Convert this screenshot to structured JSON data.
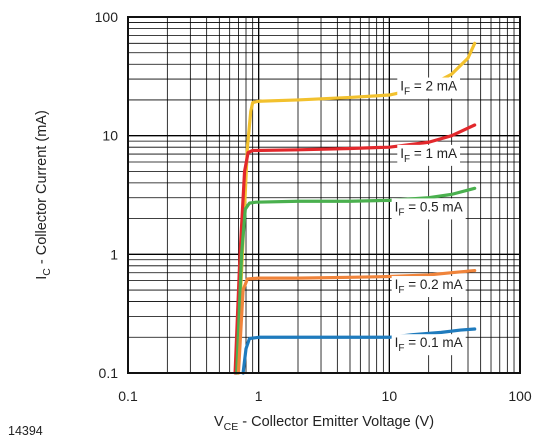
{
  "chart_data": {
    "type": "line",
    "figure_id": "14394",
    "xlabel": {
      "main": "V",
      "sub": "CE",
      "rest": " - Collector Emitter Voltage (V)"
    },
    "ylabel": {
      "main": "I",
      "sub": "C",
      "rest": " - Collector Current (mA)"
    },
    "x_scale": "log",
    "y_scale": "log",
    "xlim": [
      0.1,
      100
    ],
    "ylim": [
      0.1,
      100
    ],
    "x_ticks": [
      "0.1",
      "1",
      "10",
      "100"
    ],
    "y_ticks": [
      "0.1",
      "1",
      "10",
      "100"
    ],
    "grid": true,
    "series": [
      {
        "name": "IF = 2 mA",
        "label": {
          "main": "I",
          "sub": "F",
          "rest": " = 2 mA"
        },
        "label_anchor": [
          20,
          24
        ],
        "color": "#f2c12e",
        "points": [
          [
            0.68,
            0.1
          ],
          [
            0.75,
            1
          ],
          [
            0.82,
            8
          ],
          [
            0.87,
            16
          ],
          [
            0.9,
            19
          ],
          [
            1,
            19.5
          ],
          [
            2,
            20
          ],
          [
            5,
            21
          ],
          [
            10,
            22
          ],
          [
            20,
            26
          ],
          [
            30,
            33
          ],
          [
            40,
            45
          ],
          [
            45,
            60
          ]
        ]
      },
      {
        "name": "IF = 1 mA",
        "label": {
          "main": "I",
          "sub": "F",
          "rest": " = 1 mA"
        },
        "label_anchor": [
          20,
          6.5
        ],
        "color": "#e2282c",
        "points": [
          [
            0.66,
            0.1
          ],
          [
            0.72,
            1
          ],
          [
            0.78,
            5
          ],
          [
            0.83,
            7.2
          ],
          [
            0.9,
            7.5
          ],
          [
            2,
            7.6
          ],
          [
            5,
            7.8
          ],
          [
            10,
            8.0
          ],
          [
            20,
            8.8
          ],
          [
            30,
            10
          ],
          [
            45,
            12.3
          ]
        ]
      },
      {
        "name": "IF = 0.5 mA",
        "label": {
          "main": "I",
          "sub": "F",
          "rest": " = 0.5 mA"
        },
        "label_anchor": [
          20,
          2.3
        ],
        "color": "#4ab04e",
        "points": [
          [
            0.68,
            0.1
          ],
          [
            0.74,
            1
          ],
          [
            0.79,
            2.4
          ],
          [
            0.85,
            2.7
          ],
          [
            0.95,
            2.75
          ],
          [
            2,
            2.8
          ],
          [
            5,
            2.8
          ],
          [
            10,
            2.85
          ],
          [
            20,
            3.0
          ],
          [
            30,
            3.2
          ],
          [
            45,
            3.6
          ]
        ]
      },
      {
        "name": "IF = 0.2 mA",
        "label": {
          "main": "I",
          "sub": "F",
          "rest": " = 0.2 mA"
        },
        "label_anchor": [
          20,
          0.51
        ],
        "color": "#f0843b",
        "points": [
          [
            0.7,
            0.1
          ],
          [
            0.76,
            0.5
          ],
          [
            0.82,
            0.62
          ],
          [
            1,
            0.63
          ],
          [
            2,
            0.63
          ],
          [
            5,
            0.64
          ],
          [
            10,
            0.65
          ],
          [
            20,
            0.67
          ],
          [
            30,
            0.7
          ],
          [
            45,
            0.73
          ]
        ]
      },
      {
        "name": "IF = 0.1 mA",
        "label": {
          "main": "I",
          "sub": "F",
          "rest": " = 0.1 mA"
        },
        "label_anchor": [
          20,
          0.165
        ],
        "color": "#1f7bbd",
        "points": [
          [
            0.76,
            0.1
          ],
          [
            0.8,
            0.16
          ],
          [
            0.85,
            0.195
          ],
          [
            1,
            0.2
          ],
          [
            2,
            0.2
          ],
          [
            5,
            0.2
          ],
          [
            10,
            0.2
          ],
          [
            15,
            0.21
          ],
          [
            25,
            0.22
          ],
          [
            35,
            0.23
          ],
          [
            45,
            0.235
          ]
        ]
      }
    ]
  }
}
